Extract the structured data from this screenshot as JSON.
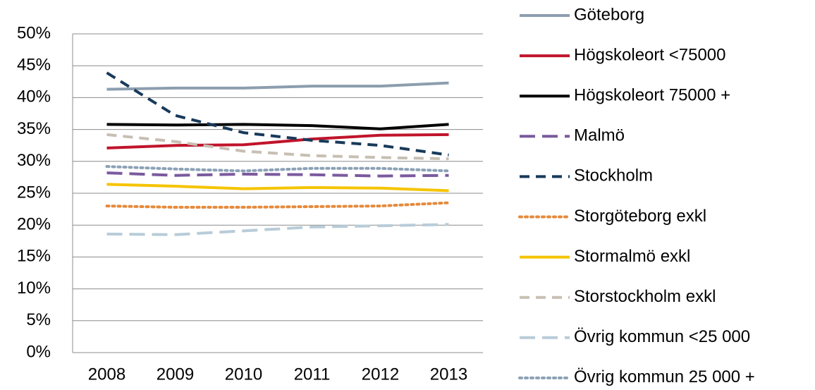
{
  "chart_data": {
    "type": "line",
    "categories": [
      "2008",
      "2009",
      "2010",
      "2011",
      "2012",
      "2013"
    ],
    "ylim": [
      0,
      50
    ],
    "yticks": [
      {
        "value": 0,
        "label": "0%"
      },
      {
        "value": 5,
        "label": "5%"
      },
      {
        "value": 10,
        "label": "10%"
      },
      {
        "value": 15,
        "label": "15%"
      },
      {
        "value": 20,
        "label": "20%"
      },
      {
        "value": 25,
        "label": "25%"
      },
      {
        "value": 30,
        "label": "30%"
      },
      {
        "value": 35,
        "label": "35%"
      },
      {
        "value": 40,
        "label": "40%"
      },
      {
        "value": 45,
        "label": "45%"
      },
      {
        "value": 50,
        "label": "50%"
      }
    ],
    "grid": true,
    "legend": "right",
    "series": [
      {
        "name": "Göteborg",
        "color": "#8c9eae",
        "style": "solid",
        "values": [
          41.3,
          41.5,
          41.5,
          41.8,
          41.8,
          42.3
        ]
      },
      {
        "name": "Högskoleort <75000",
        "color": "#c0142b",
        "style": "solid",
        "values": [
          32.1,
          32.5,
          32.6,
          33.5,
          34.1,
          34.2
        ]
      },
      {
        "name": "Högskoleort 75000 +",
        "color": "#000000",
        "style": "solid",
        "values": [
          35.8,
          35.7,
          35.8,
          35.6,
          35.1,
          35.8
        ]
      },
      {
        "name": "Malmö",
        "color": "#7b5a9e",
        "style": "longdash",
        "values": [
          28.2,
          27.8,
          28.0,
          27.9,
          27.7,
          27.8
        ]
      },
      {
        "name": "Stockholm",
        "color": "#183a5a",
        "style": "dash",
        "values": [
          43.9,
          37.2,
          34.5,
          33.3,
          32.5,
          31.0
        ]
      },
      {
        "name": "Storgöteborg exkl",
        "color": "#e58a3c",
        "style": "dot",
        "values": [
          23.0,
          22.8,
          22.8,
          22.9,
          23.0,
          23.5
        ]
      },
      {
        "name": "Stormalmö exkl",
        "color": "#f5c400",
        "style": "solid",
        "values": [
          26.4,
          26.1,
          25.7,
          25.9,
          25.8,
          25.4
        ]
      },
      {
        "name": "Storstockholm exkl",
        "color": "#c7bfb3",
        "style": "dash",
        "values": [
          34.2,
          33.1,
          31.6,
          30.9,
          30.6,
          30.4
        ]
      },
      {
        "name": "Övrig kommun <25 000",
        "color": "#b8ccd8",
        "style": "longdash",
        "values": [
          18.6,
          18.5,
          19.1,
          19.7,
          19.9,
          20.1
        ]
      },
      {
        "name": "Övrig kommun 25 000 +",
        "color": "#8ba1b5",
        "style": "dot",
        "values": [
          29.2,
          28.8,
          28.5,
          28.9,
          28.9,
          28.5
        ]
      }
    ]
  }
}
